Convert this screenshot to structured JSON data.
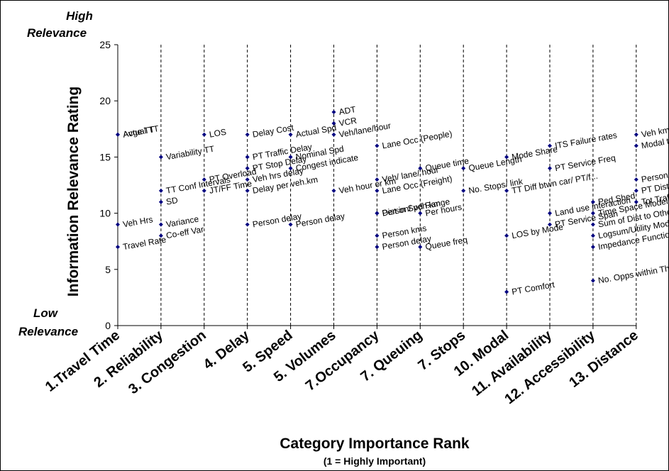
{
  "chart_data": {
    "type": "scatter",
    "xlabel": "Category Importance Rank",
    "xlabel_note": "(1 = Highly Important)",
    "ylabel": "Information Relevance Rating",
    "high_label_line1": "High",
    "high_label_line2": "Relevance",
    "low_label_line1": "Low",
    "low_label_line2": "Relevance",
    "ylim": [
      0,
      25
    ],
    "yticks": [
      "0",
      "5",
      "10",
      "15",
      "20",
      "25"
    ],
    "categories": [
      "1.Travel Time",
      "2. Reliability",
      "3. Congestion",
      "4. Delay",
      "5. Speed",
      "5. Volumes",
      "7.Occupancy",
      "7. Queuing",
      "7. Stops",
      "10. Modal",
      "11. Availability",
      "12. Accessibility",
      "13. Distance"
    ],
    "grid": "vertical",
    "marker_color": "#000080",
    "points": [
      {
        "x": 0,
        "y": 17,
        "label": "Actual TT"
      },
      {
        "x": 0,
        "y": 17,
        "label": "Avge TT"
      },
      {
        "x": 0,
        "y": 9,
        "label": "Veh Hrs"
      },
      {
        "x": 0,
        "y": 7,
        "label": "Travel Rate"
      },
      {
        "x": 1,
        "y": 15,
        "label": "Variability TT"
      },
      {
        "x": 1,
        "y": 12,
        "label": "TT Conf Intervals"
      },
      {
        "x": 1,
        "y": 11,
        "label": "SD"
      },
      {
        "x": 1,
        "y": 9,
        "label": "Variance"
      },
      {
        "x": 1,
        "y": 8,
        "label": "Co-eff Var"
      },
      {
        "x": 2,
        "y": 17,
        "label": "LOS"
      },
      {
        "x": 2,
        "y": 13,
        "label": "PT Overload"
      },
      {
        "x": 2,
        "y": 12,
        "label": "JT/FF Time"
      },
      {
        "x": 3,
        "y": 17,
        "label": "Delay Cost"
      },
      {
        "x": 3,
        "y": 15,
        "label": "PT Traffic Delay"
      },
      {
        "x": 3,
        "y": 14,
        "label": "PT Stop Delay"
      },
      {
        "x": 3,
        "y": 13,
        "label": "Veh hrs delay"
      },
      {
        "x": 3,
        "y": 12,
        "label": "Delay per veh.km"
      },
      {
        "x": 3,
        "y": 9,
        "label": "Person delay"
      },
      {
        "x": 4,
        "y": 17,
        "label": "Actual Spd"
      },
      {
        "x": 4,
        "y": 15,
        "label": "Nominal Spd"
      },
      {
        "x": 4,
        "y": 14,
        "label": "Congest indicate"
      },
      {
        "x": 4,
        "y": 9,
        "label": "Person delay"
      },
      {
        "x": 5,
        "y": 19,
        "label": "ADT"
      },
      {
        "x": 5,
        "y": 18,
        "label": "VCR"
      },
      {
        "x": 5,
        "y": 17,
        "label": "Veh/lane/hour"
      },
      {
        "x": 5,
        "y": 12,
        "label": "Veh hour or km"
      },
      {
        "x": 6,
        "y": 16,
        "label": "Lane Occ (People)"
      },
      {
        "x": 6,
        "y": 13,
        "label": "Veh/ lane/ hour"
      },
      {
        "x": 6,
        "y": 12,
        "label": "Lane Occ (Freight)"
      },
      {
        "x": 6,
        "y": 10,
        "label": "Dist in Spd Range"
      },
      {
        "x": 6,
        "y": 10,
        "label": "Person/ veh.km"
      },
      {
        "x": 6,
        "y": 8,
        "label": "Person kms"
      },
      {
        "x": 6,
        "y": 7,
        "label": "Person delay"
      },
      {
        "x": 7,
        "y": 14,
        "label": "Queue time"
      },
      {
        "x": 7,
        "y": 10,
        "label": "Per hours"
      },
      {
        "x": 7,
        "y": 7,
        "label": "Queue freq"
      },
      {
        "x": 8,
        "y": 12,
        "label": "No. Stops/ link"
      },
      {
        "x": 8,
        "y": 14,
        "label": "Queue Length"
      },
      {
        "x": 9,
        "y": 15,
        "label": "Mode Share"
      },
      {
        "x": 9,
        "y": 12,
        "label": "TT Diff btwn car/ PT/f..."
      },
      {
        "x": 9,
        "y": 8,
        "label": "LOS by Mode"
      },
      {
        "x": 9,
        "y": 3,
        "label": "PT Comfort"
      },
      {
        "x": 10,
        "y": 16,
        "label": "ITS Failure rates"
      },
      {
        "x": 10,
        "y": 14,
        "label": "PT Service Freq"
      },
      {
        "x": 10,
        "y": 10,
        "label": "Land use interaction"
      },
      {
        "x": 10,
        "y": 9,
        "label": "PT Service Span"
      },
      {
        "x": 11,
        "y": 11,
        "label": "Ped Shed"
      },
      {
        "x": 11,
        "y": 10,
        "label": "Time Space Models"
      },
      {
        "x": 11,
        "y": 9,
        "label": "Sum of Dist to Other..."
      },
      {
        "x": 11,
        "y": 8,
        "label": "Logsum/Utility Models"
      },
      {
        "x": 11,
        "y": 7,
        "label": "Impedance Functions"
      },
      {
        "x": 11,
        "y": 4,
        "label": "No. Opps within Thre..."
      },
      {
        "x": 12,
        "y": 17,
        "label": "Veh kms"
      },
      {
        "x": 12,
        "y": 16,
        "label": "Modal travel"
      },
      {
        "x": 12,
        "y": 13,
        "label": "Person.kms"
      },
      {
        "x": 12,
        "y": 12,
        "label": "PT Dist Stops"
      },
      {
        "x": 12,
        "y": 11,
        "label": "Tot Traffic Delay/km"
      }
    ]
  }
}
